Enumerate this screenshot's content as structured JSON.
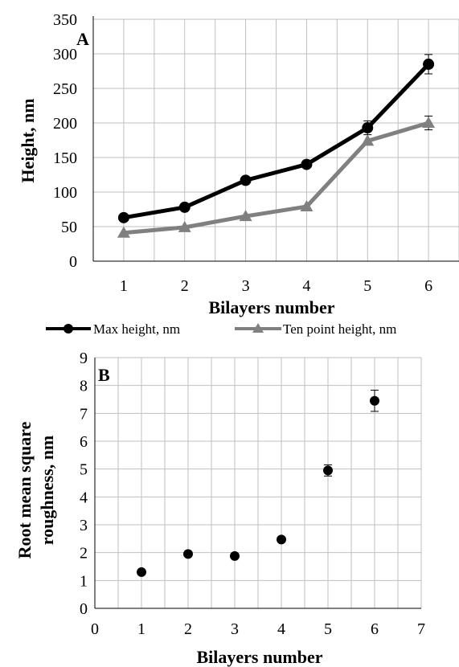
{
  "chart_data": [
    {
      "type": "line",
      "panel_label": "A",
      "x": [
        1,
        2,
        3,
        4,
        5,
        6
      ],
      "categories": [
        "1",
        "2",
        "3",
        "4",
        "5",
        "6"
      ],
      "series": [
        {
          "name": "Max height, nm",
          "values": [
            63,
            78,
            117,
            140,
            193,
            285
          ],
          "errors": [
            0,
            0,
            0,
            0,
            10,
            14
          ],
          "color": "#000000",
          "marker": "circle"
        },
        {
          "name": "Ten point height, nm",
          "values": [
            41,
            49,
            65,
            79,
            174,
            200
          ],
          "errors": [
            0,
            0,
            0,
            0,
            0,
            10
          ],
          "color": "#808080",
          "marker": "triangle"
        }
      ],
      "xlabel": "Bilayers number",
      "ylabel": "Height, nm",
      "ylim": [
        0,
        350
      ],
      "yticks": [
        0,
        50,
        100,
        150,
        200,
        250,
        300,
        350
      ],
      "grid": true,
      "legend": "bottom"
    },
    {
      "type": "scatter",
      "panel_label": "B",
      "series": [
        {
          "x": [
            1,
            2,
            3,
            4,
            5,
            6
          ],
          "values": [
            1.3,
            1.95,
            1.88,
            2.47,
            4.95,
            7.45
          ],
          "errors": [
            0,
            0,
            0,
            0,
            0.2,
            0.38
          ],
          "color": "#000000"
        }
      ],
      "xlabel": "Bilayers number",
      "ylabel": "Root mean square roughness, nm",
      "xlim": [
        0,
        7
      ],
      "ylim": [
        0,
        9
      ],
      "xticks": [
        0,
        1,
        2,
        3,
        4,
        5,
        6,
        7
      ],
      "yticks": [
        0,
        1,
        2,
        3,
        4,
        5,
        6,
        7,
        8,
        9
      ],
      "grid": true
    }
  ]
}
